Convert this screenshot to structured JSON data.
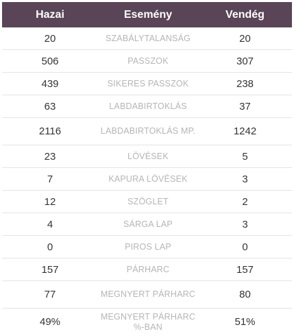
{
  "header": {
    "home": "Hazai",
    "event": "Esemény",
    "away": "Vendég"
  },
  "rows": [
    {
      "home": "20",
      "event": "SZABÁLYTALANSÁG",
      "away": "20",
      "lines": 1
    },
    {
      "home": "506",
      "event": "PASSZOK",
      "away": "307",
      "lines": 1
    },
    {
      "home": "439",
      "event": "SIKERES PASSZOK",
      "away": "238",
      "lines": 1
    },
    {
      "home": "63",
      "event": "LABDABIRTOKLÁS",
      "away": "37",
      "lines": 1
    },
    {
      "home": "2116",
      "event": "LABDABIRTOKLÁS MP.",
      "away": "1242",
      "lines": 2
    },
    {
      "home": "23",
      "event": "LÖVÉSEK",
      "away": "5",
      "lines": 1
    },
    {
      "home": "7",
      "event": "KAPURA LÖVÉSEK",
      "away": "3",
      "lines": 1
    },
    {
      "home": "12",
      "event": "SZÖGLET",
      "away": "2",
      "lines": 1
    },
    {
      "home": "4",
      "event": "SÁRGA LAP",
      "away": "3",
      "lines": 1
    },
    {
      "home": "0",
      "event": "PIROS LAP",
      "away": "0",
      "lines": 1
    },
    {
      "home": "157",
      "event": "PÁRHARC",
      "away": "157",
      "lines": 1
    },
    {
      "home": "77",
      "event": "MEGNYERT PÁRHARC",
      "away": "80",
      "lines": 2
    },
    {
      "home": "49%",
      "event": "MEGNYERT PÁRHARC %-BAN",
      "away": "51%",
      "lines": 2
    }
  ]
}
